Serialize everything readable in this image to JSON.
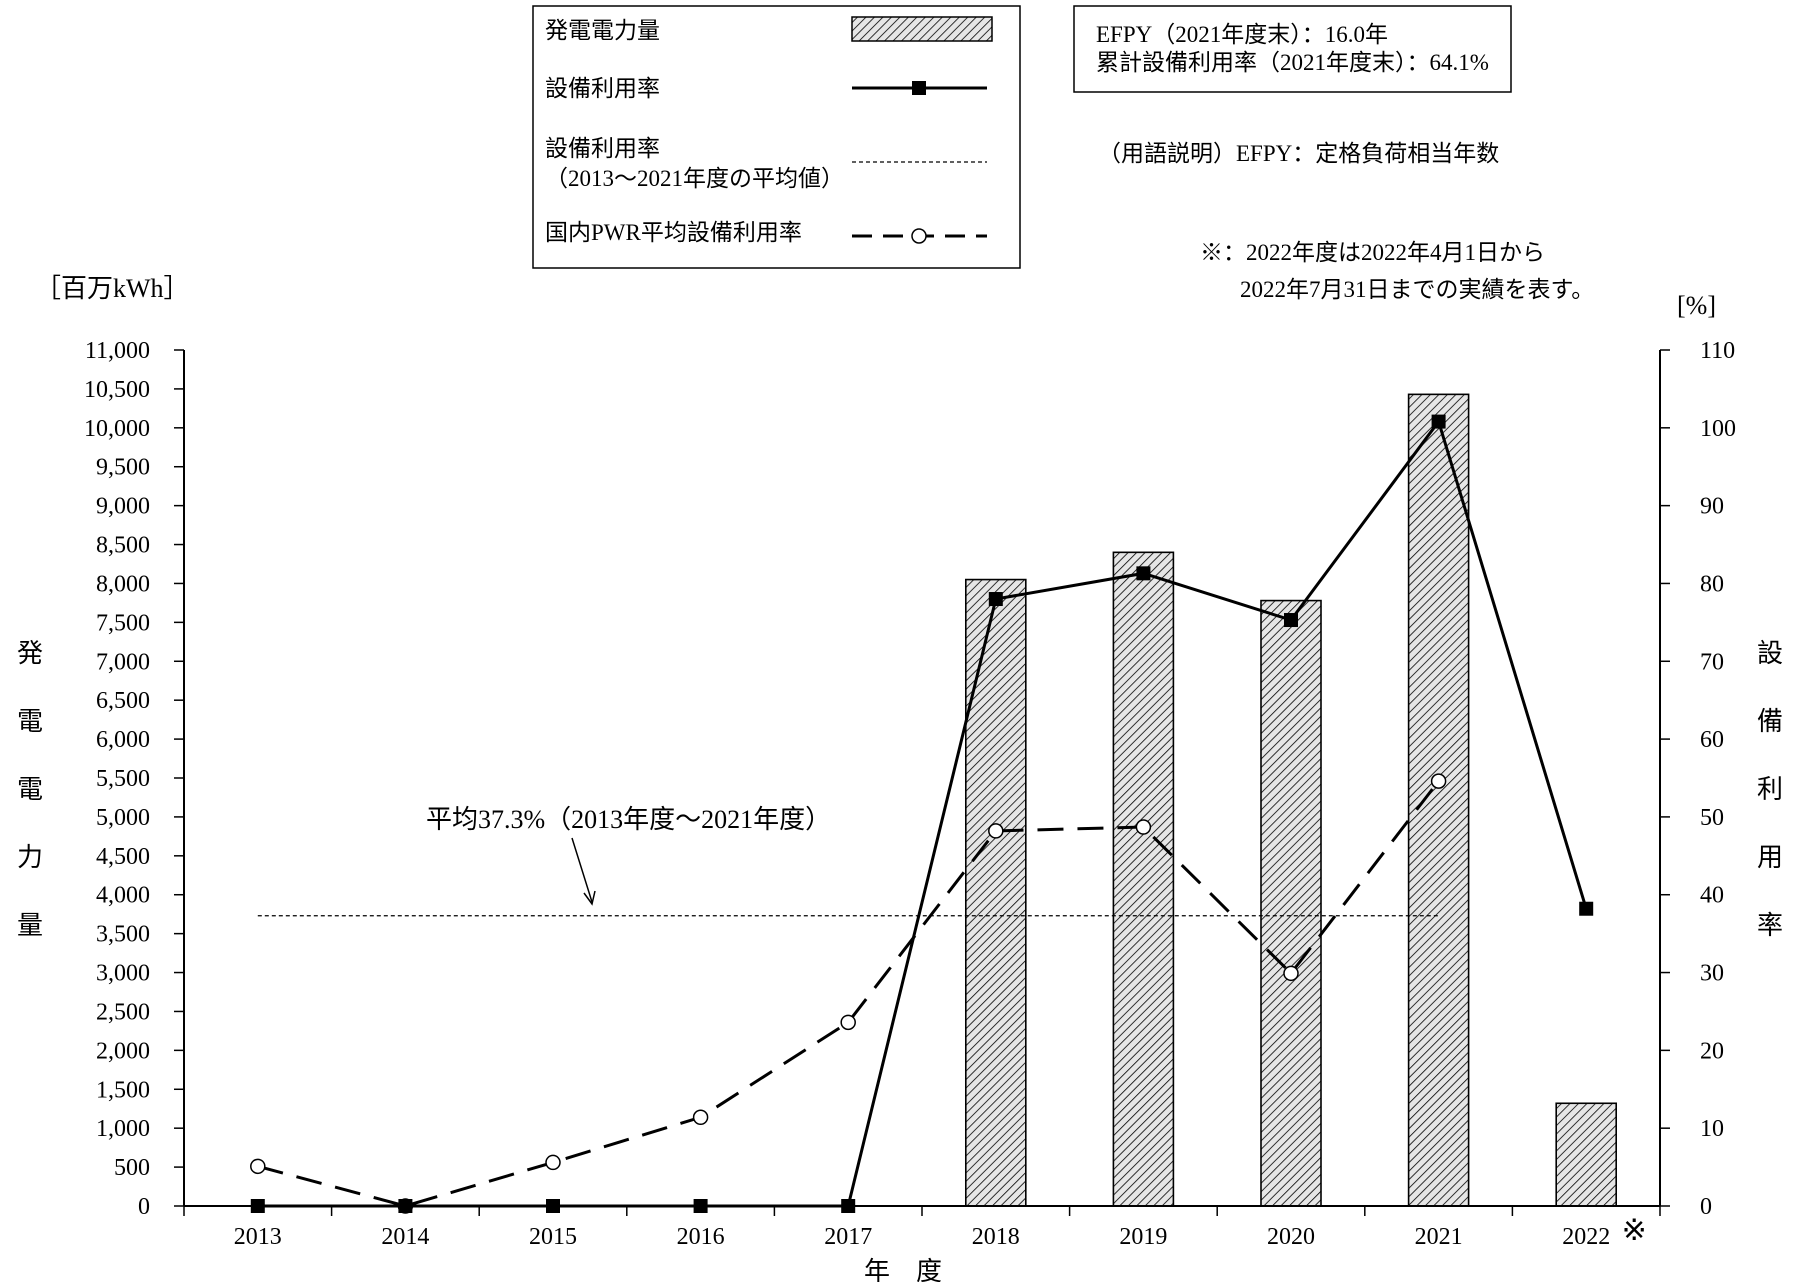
{
  "chart_data": {
    "type": "bar+line",
    "categories": [
      "2013",
      "2014",
      "2015",
      "2016",
      "2017",
      "2018",
      "2019",
      "2020",
      "2021",
      "2022"
    ],
    "x_last_mark": "※",
    "xlabel": "年　度",
    "ylabel_left": [
      "発",
      "電",
      "電",
      "力",
      "量"
    ],
    "ylabel_right": [
      "設",
      "備",
      "利",
      "用",
      "率"
    ],
    "unit_left": "［百万kWh］",
    "unit_right": "[%]",
    "ylim_left": [
      0,
      11000
    ],
    "ylim_right": [
      0,
      110
    ],
    "yticks_left": [
      "0",
      "500",
      "1,000",
      "1,500",
      "2,000",
      "2,500",
      "3,000",
      "3,500",
      "4,000",
      "4,500",
      "5,000",
      "5,500",
      "6,000",
      "6,500",
      "7,000",
      "7,500",
      "8,000",
      "8,500",
      "9,000",
      "9,500",
      "10,000",
      "10,500",
      "11,000"
    ],
    "yticks_right": [
      "0",
      "10",
      "20",
      "30",
      "40",
      "50",
      "60",
      "70",
      "80",
      "90",
      "100",
      "110"
    ],
    "series": [
      {
        "name": "発電電力量",
        "kind": "bar",
        "axis": "left",
        "values": [
          0,
          0,
          0,
          0,
          0,
          8050,
          8400,
          7780,
          10430,
          1320
        ]
      },
      {
        "name": "設備利用率",
        "kind": "line",
        "axis": "right",
        "marker": "square",
        "values": [
          0,
          0,
          0,
          0,
          0,
          78.0,
          81.3,
          75.3,
          100.8,
          38.2
        ]
      },
      {
        "name": "国内PWR平均設備利用率",
        "kind": "dashed-line",
        "axis": "right",
        "marker": "open-circle",
        "values": [
          5.1,
          0,
          5.6,
          11.4,
          23.6,
          48.2,
          48.7,
          29.9,
          54.6,
          null
        ]
      }
    ],
    "average": {
      "value": 37.3,
      "from_index": 0,
      "to_index": 8,
      "label": "平均37.3%（2013年度～2021年度）"
    },
    "legend": {
      "placement": "top-center",
      "items": [
        {
          "label": [
            "発電電力量"
          ],
          "kind": "bar"
        },
        {
          "label": [
            "設備利用率"
          ],
          "kind": "line"
        },
        {
          "label": [
            "設備利用率",
            "（2013～2021年度の平均値）"
          ],
          "kind": "dotted"
        },
        {
          "label": [
            "国内PWR平均設備利用率"
          ],
          "kind": "dashed-line"
        }
      ]
    },
    "info_box": [
      "EFPY（2021年度末）：16.0年",
      "累計設備利用率（2021年度末）：64.1%"
    ],
    "term_note": "（用語説明）EFPY：定格負荷相当年数",
    "footnote": [
      "※：2022年度は2022年4月1日から",
      "2022年7月31日までの実績を表す。"
    ],
    "colors": {
      "line": "#000000",
      "bar_fill": "#e6e6e6",
      "bar_hatch": "#000000",
      "background": "#ffffff"
    }
  }
}
